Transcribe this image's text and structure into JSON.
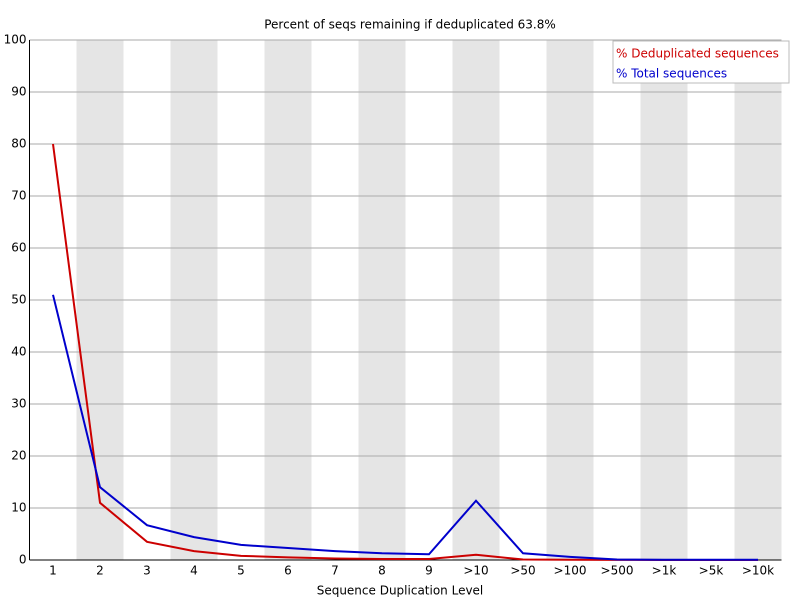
{
  "chart_data": {
    "type": "line",
    "title": "Percent of seqs remaining if deduplicated 63.8%",
    "x_label": "Sequence Duplication Level",
    "categories": [
      "1",
      "2",
      "3",
      "4",
      "5",
      "6",
      "7",
      "8",
      "9",
      ">10",
      ">50",
      ">100",
      ">500",
      ">1k",
      ">5k",
      ">10k"
    ],
    "series": [
      {
        "name": "% Deduplicated sequences",
        "color": "#cc0000",
        "values": [
          80,
          11,
          3.5,
          1.7,
          0.8,
          0.5,
          0.3,
          0.2,
          0.2,
          1.0,
          0.1,
          0.05,
          0.02,
          0.01,
          0.01,
          0.01
        ]
      },
      {
        "name": "% Total sequences",
        "color": "#0000cc",
        "values": [
          51,
          14,
          6.7,
          4.4,
          2.9,
          2.3,
          1.7,
          1.3,
          1.1,
          11.4,
          1.3,
          0.6,
          0.1,
          0.05,
          0.05,
          0.05
        ]
      }
    ],
    "ylim": [
      0,
      100
    ],
    "yticks": [
      0,
      10,
      20,
      30,
      40,
      50,
      60,
      70,
      80,
      90,
      100
    ],
    "grid": true,
    "legend": "top-right"
  }
}
